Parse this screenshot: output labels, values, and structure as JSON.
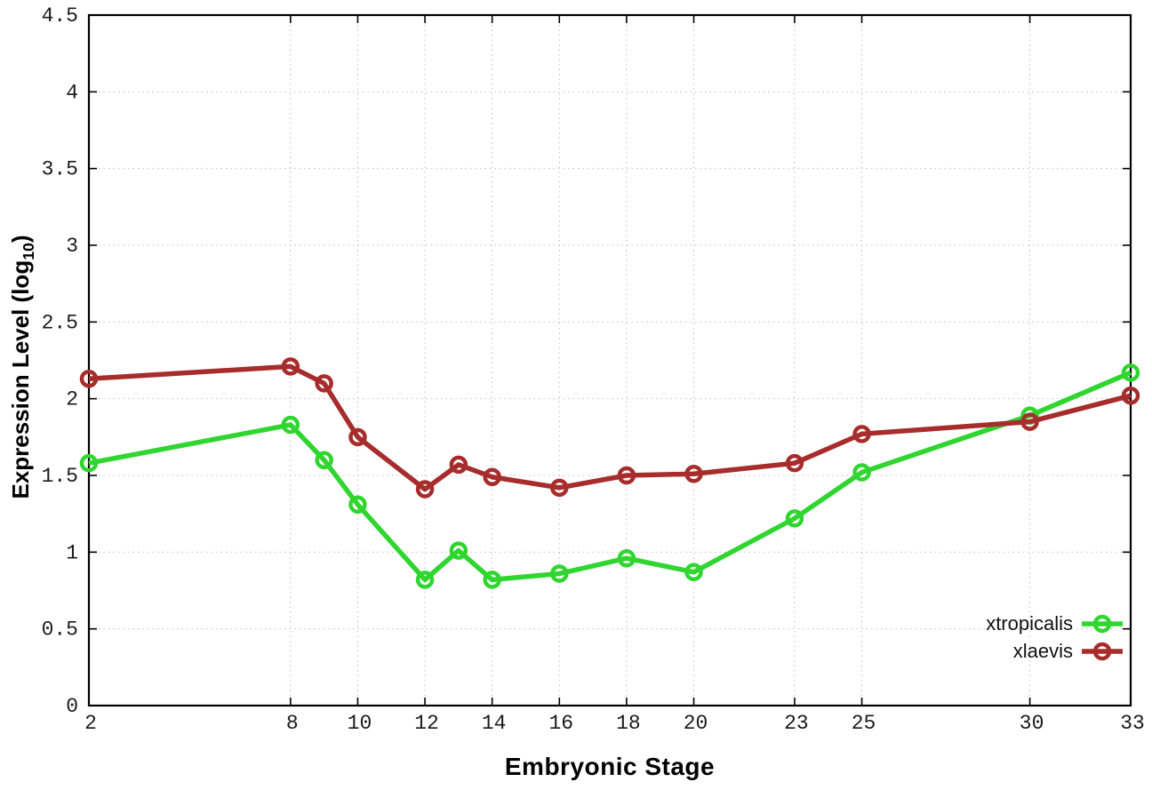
{
  "chart_data": {
    "type": "line",
    "title": "",
    "xlabel": "Embryonic Stage",
    "ylabel_prefix": "Expression Level (log",
    "ylabel_sub": "10",
    "ylabel_suffix": ")",
    "xlim": [
      2,
      33
    ],
    "ylim": [
      0,
      4.5
    ],
    "x_ticks": [
      2,
      8,
      10,
      12,
      14,
      16,
      18,
      20,
      23,
      25,
      30,
      33
    ],
    "x_tick_labels": [
      "2",
      "8",
      "10",
      "12",
      "14",
      "16",
      "18",
      "20",
      "23",
      "25",
      "30",
      "33"
    ],
    "y_ticks": [
      0,
      0.5,
      1,
      1.5,
      2,
      2.5,
      3,
      3.5,
      4,
      4.5
    ],
    "y_tick_labels": [
      "0",
      "0.5",
      "1",
      "1.5",
      "2",
      "2.5",
      "3",
      "3.5",
      "4",
      "4.5"
    ],
    "grid": true,
    "legend_position": "inside-bottom-right",
    "legend_marker_shape": "open-circle",
    "series": [
      {
        "name": "xtropicalis",
        "color": "#30d530",
        "x": [
          2,
          8,
          9,
          10,
          12,
          13,
          14,
          16,
          18,
          20,
          23,
          25,
          30,
          33
        ],
        "values": [
          1.58,
          1.83,
          1.6,
          1.31,
          0.82,
          1.01,
          0.82,
          0.86,
          0.96,
          0.87,
          1.22,
          1.52,
          1.89,
          2.17
        ]
      },
      {
        "name": "xlaevis",
        "color": "#a72c2c",
        "x": [
          2,
          8,
          9,
          10,
          12,
          13,
          14,
          16,
          18,
          20,
          23,
          25,
          30,
          33
        ],
        "values": [
          2.13,
          2.21,
          2.1,
          1.75,
          1.41,
          1.57,
          1.49,
          1.42,
          1.5,
          1.51,
          1.58,
          1.77,
          1.85,
          2.02
        ]
      }
    ]
  },
  "style": {
    "grid_color": "#bfbfbf",
    "axis_color": "#000000",
    "tick_label_color": "#1a1a1a",
    "background": "#ffffff"
  }
}
